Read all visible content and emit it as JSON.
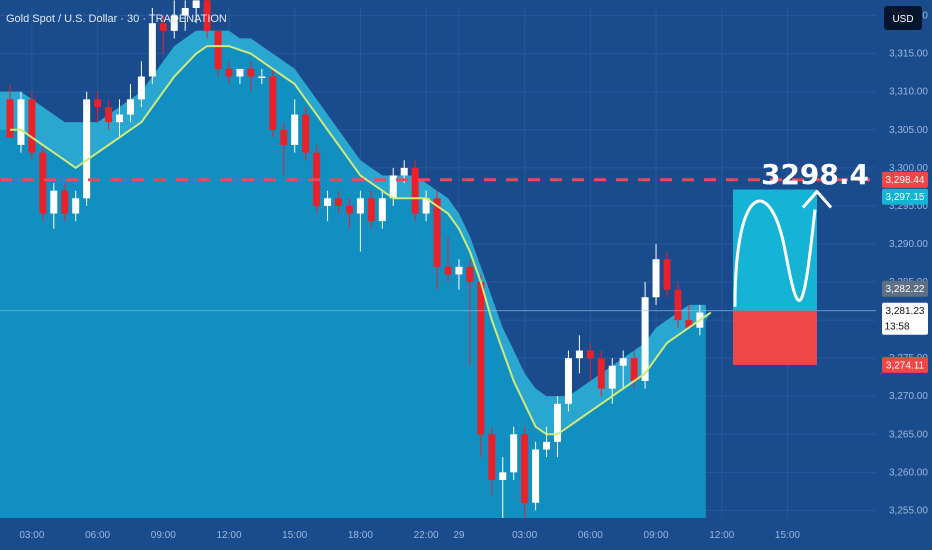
{
  "header": {
    "symbol_title": "Gold Spot / U.S. Dollar · 30 · TRADENATION",
    "currency_button": "USD"
  },
  "annotation": {
    "target_label": "3298.4"
  },
  "colors": {
    "background": "#1a4b8c",
    "area_fill": "#118fc0",
    "band_fill": "#2eaad2",
    "ema_line": "#cfe97a",
    "candle_up": "#ffffff",
    "candle_down": "#e8212a",
    "target_box": "#15b4d6",
    "stop_box": "#ef4747",
    "dashed_line": "#ef4a56",
    "tag_target": "#ef4747",
    "tag_resist": "#13b4d4",
    "tag_last_close": "#5f6f84",
    "tag_current": "#ffffff",
    "tag_stop": "#ef4747"
  },
  "price_tags": {
    "target": "3,298.44",
    "resistance": "3,297.15",
    "last_close": "3,282.22",
    "current": "3,281.23",
    "countdown": "13:58",
    "stop": "3,274.11"
  },
  "chart_data": {
    "type": "candlestick",
    "ylim": [
      3254,
      3321
    ],
    "y_ticks": [
      {
        "value": 3320,
        "label": "3,320.00"
      },
      {
        "value": 3315,
        "label": "3,315.00"
      },
      {
        "value": 3310,
        "label": "3,310.00"
      },
      {
        "value": 3305,
        "label": "3,305.00"
      },
      {
        "value": 3300,
        "label": "3,300.00"
      },
      {
        "value": 3295,
        "label": "3,295.00"
      },
      {
        "value": 3290,
        "label": "3,290.00"
      },
      {
        "value": 3285,
        "label": "3,285.00"
      },
      {
        "value": 3280,
        "label": "3,280.00"
      },
      {
        "value": 3275,
        "label": "3,275.00"
      },
      {
        "value": 3270,
        "label": "3,270.00"
      },
      {
        "value": 3265,
        "label": "3,265.00"
      },
      {
        "value": 3260,
        "label": "3,260.00"
      },
      {
        "value": 3255,
        "label": "3,255.00"
      }
    ],
    "x_ticks": [
      {
        "index": 2,
        "label": "03:00"
      },
      {
        "index": 8,
        "label": "06:00"
      },
      {
        "index": 14,
        "label": "09:00"
      },
      {
        "index": 20,
        "label": "12:00"
      },
      {
        "index": 26,
        "label": "15:00"
      },
      {
        "index": 32,
        "label": "18:00"
      },
      {
        "index": 38,
        "label": "22:00"
      },
      {
        "index": 41,
        "label": "29"
      },
      {
        "index": 47,
        "label": "03:00"
      },
      {
        "index": 53,
        "label": "06:00"
      },
      {
        "index": 59,
        "label": "09:00"
      },
      {
        "index": 65,
        "label": "12:00"
      },
      {
        "index": 71,
        "label": "15:00"
      }
    ],
    "candles": [
      {
        "o": 3309,
        "h": 3311,
        "l": 3304,
        "c": 3304
      },
      {
        "o": 3303,
        "h": 3310,
        "l": 3302,
        "c": 3309
      },
      {
        "o": 3309,
        "h": 3310,
        "l": 3301,
        "c": 3302
      },
      {
        "o": 3302,
        "h": 3303,
        "l": 3293,
        "c": 3294
      },
      {
        "o": 3294,
        "h": 3298,
        "l": 3292,
        "c": 3297
      },
      {
        "o": 3297,
        "h": 3298,
        "l": 3293,
        "c": 3294
      },
      {
        "o": 3294,
        "h": 3297,
        "l": 3293,
        "c": 3296
      },
      {
        "o": 3296,
        "h": 3310,
        "l": 3295,
        "c": 3309
      },
      {
        "o": 3309,
        "h": 3310,
        "l": 3306,
        "c": 3308
      },
      {
        "o": 3308,
        "h": 3309,
        "l": 3305,
        "c": 3306
      },
      {
        "o": 3306,
        "h": 3309,
        "l": 3304,
        "c": 3307
      },
      {
        "o": 3307,
        "h": 3311,
        "l": 3306,
        "c": 3309
      },
      {
        "o": 3309,
        "h": 3314,
        "l": 3308,
        "c": 3312
      },
      {
        "o": 3312,
        "h": 3321,
        "l": 3311,
        "c": 3319
      },
      {
        "o": 3319,
        "h": 3320,
        "l": 3315,
        "c": 3318
      },
      {
        "o": 3318,
        "h": 3322,
        "l": 3317,
        "c": 3320
      },
      {
        "o": 3320,
        "h": 3322,
        "l": 3318,
        "c": 3321
      },
      {
        "o": 3321,
        "h": 3322,
        "l": 3319,
        "c": 3322
      },
      {
        "o": 3322,
        "h": 3323,
        "l": 3317,
        "c": 3318
      },
      {
        "o": 3318,
        "h": 3318,
        "l": 3312,
        "c": 3313
      },
      {
        "o": 3313,
        "h": 3314,
        "l": 3311,
        "c": 3312
      },
      {
        "o": 3312,
        "h": 3313,
        "l": 3311,
        "c": 3313
      },
      {
        "o": 3313,
        "h": 3314,
        "l": 3310,
        "c": 3312
      },
      {
        "o": 3312,
        "h": 3313,
        "l": 3311,
        "c": 3312
      },
      {
        "o": 3312,
        "h": 3313,
        "l": 3304,
        "c": 3305
      },
      {
        "o": 3305,
        "h": 3306,
        "l": 3299,
        "c": 3303
      },
      {
        "o": 3303,
        "h": 3309,
        "l": 3302,
        "c": 3307
      },
      {
        "o": 3307,
        "h": 3308,
        "l": 3301,
        "c": 3302
      },
      {
        "o": 3302,
        "h": 3303,
        "l": 3294,
        "c": 3295
      },
      {
        "o": 3295,
        "h": 3297,
        "l": 3293,
        "c": 3296
      },
      {
        "o": 3296,
        "h": 3297,
        "l": 3294,
        "c": 3295
      },
      {
        "o": 3295,
        "h": 3296,
        "l": 3292,
        "c": 3294
      },
      {
        "o": 3294,
        "h": 3297,
        "l": 3289,
        "c": 3296
      },
      {
        "o": 3296,
        "h": 3297,
        "l": 3292,
        "c": 3293
      },
      {
        "o": 3293,
        "h": 3297,
        "l": 3292,
        "c": 3296
      },
      {
        "o": 3296,
        "h": 3300,
        "l": 3295,
        "c": 3299
      },
      {
        "o": 3299,
        "h": 3301,
        "l": 3298,
        "c": 3300
      },
      {
        "o": 3300,
        "h": 3301,
        "l": 3293,
        "c": 3294
      },
      {
        "o": 3294,
        "h": 3297,
        "l": 3293,
        "c": 3296
      },
      {
        "o": 3296,
        "h": 3297,
        "l": 3284,
        "c": 3287
      },
      {
        "o": 3287,
        "h": 3291,
        "l": 3285,
        "c": 3286
      },
      {
        "o": 3286,
        "h": 3288,
        "l": 3284,
        "c": 3287
      },
      {
        "o": 3287,
        "h": 3288,
        "l": 3274,
        "c": 3285
      },
      {
        "o": 3285,
        "h": 3286,
        "l": 3262,
        "c": 3265
      },
      {
        "o": 3265,
        "h": 3266,
        "l": 3257,
        "c": 3259
      },
      {
        "o": 3259,
        "h": 3262,
        "l": 3254,
        "c": 3260
      },
      {
        "o": 3260,
        "h": 3266,
        "l": 3259,
        "c": 3265
      },
      {
        "o": 3265,
        "h": 3266,
        "l": 3254,
        "c": 3256
      },
      {
        "o": 3256,
        "h": 3264,
        "l": 3255,
        "c": 3263
      },
      {
        "o": 3263,
        "h": 3266,
        "l": 3262,
        "c": 3264
      },
      {
        "o": 3264,
        "h": 3270,
        "l": 3262,
        "c": 3269
      },
      {
        "o": 3269,
        "h": 3276,
        "l": 3268,
        "c": 3275
      },
      {
        "o": 3275,
        "h": 3278,
        "l": 3273,
        "c": 3276
      },
      {
        "o": 3276,
        "h": 3277,
        "l": 3272,
        "c": 3275
      },
      {
        "o": 3275,
        "h": 3276,
        "l": 3270,
        "c": 3271
      },
      {
        "o": 3271,
        "h": 3275,
        "l": 3269,
        "c": 3274
      },
      {
        "o": 3274,
        "h": 3276,
        "l": 3271,
        "c": 3275
      },
      {
        "o": 3275,
        "h": 3276,
        "l": 3271,
        "c": 3272
      },
      {
        "o": 3272,
        "h": 3285,
        "l": 3271,
        "c": 3283
      },
      {
        "o": 3283,
        "h": 3290,
        "l": 3282,
        "c": 3288
      },
      {
        "o": 3288,
        "h": 3289,
        "l": 3283,
        "c": 3284
      },
      {
        "o": 3284,
        "h": 3285,
        "l": 3279,
        "c": 3280
      },
      {
        "o": 3280,
        "h": 3282,
        "l": 3279,
        "c": 3279
      },
      {
        "o": 3279,
        "h": 3282,
        "l": 3278,
        "c": 3281
      }
    ],
    "ema": [
      3305,
      3305,
      3304,
      3303,
      3302,
      3301,
      3300,
      3301,
      3302,
      3303,
      3304,
      3305,
      3306,
      3308,
      3310,
      3312,
      3313.5,
      3315,
      3316,
      3316,
      3316,
      3315.5,
      3315,
      3314,
      3313,
      3312,
      3311,
      3309,
      3307,
      3305,
      3303,
      3301,
      3299,
      3298,
      3297,
      3296,
      3296,
      3296,
      3296,
      3295,
      3294,
      3292,
      3289,
      3285,
      3280,
      3276,
      3272,
      3269,
      3266,
      3265,
      3265,
      3266,
      3267,
      3268,
      3269,
      3270,
      3271,
      3272,
      3273,
      3275,
      3277,
      3278,
      3279,
      3280,
      3281
    ],
    "band_upper": [
      3310,
      3310,
      3309,
      3308,
      3307,
      3306,
      3306,
      3306,
      3306,
      3307,
      3308,
      3309,
      3310,
      3312,
      3314,
      3316,
      3317,
      3318,
      3318,
      3318,
      3318,
      3317,
      3317,
      3316,
      3315,
      3314,
      3313,
      3311,
      3309,
      3307,
      3305,
      3303,
      3301,
      3300,
      3299,
      3299,
      3299,
      3299,
      3298,
      3297,
      3296,
      3294,
      3291,
      3287,
      3283,
      3279,
      3276,
      3273,
      3271,
      3270,
      3270,
      3270,
      3271,
      3272,
      3273,
      3274,
      3275,
      3276,
      3277,
      3279,
      3280,
      3281,
      3282,
      3282,
      3282
    ],
    "target_level": 3298.44,
    "resistance_level": 3297.15,
    "current_level": 3281.23,
    "stop_level": 3274.11,
    "projection": {
      "target_box": {
        "top": 3297.15,
        "bottom": 3281.23
      },
      "stop_box": {
        "top": 3281.23,
        "bottom": 3274.11
      }
    }
  }
}
